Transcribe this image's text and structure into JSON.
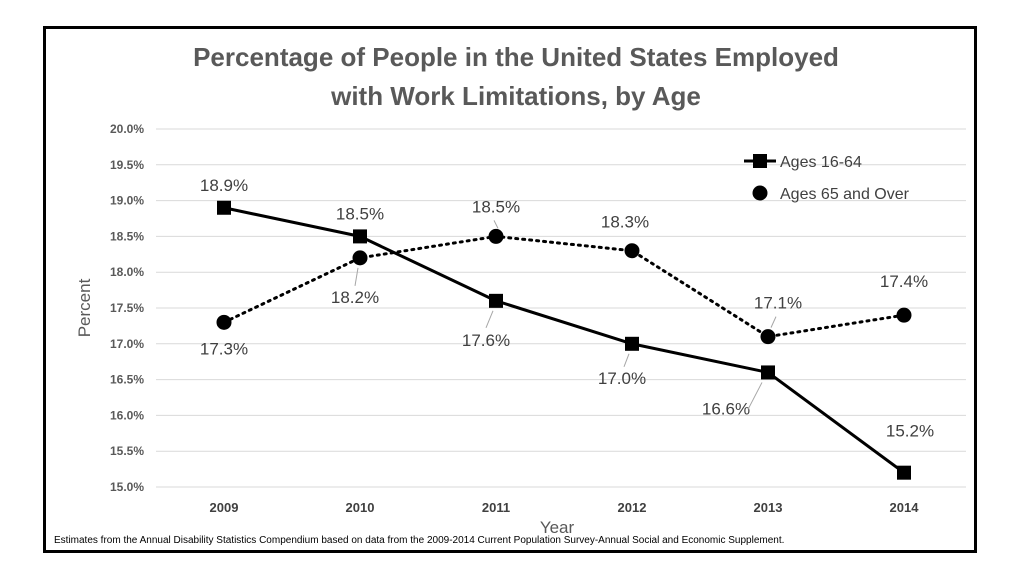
{
  "chart_data": {
    "type": "line",
    "title": [
      "Percentage of People in the United States Employed",
      "with Work Limitations, by Age"
    ],
    "xlabel": "Year",
    "ylabel": "Percent",
    "categories": [
      "2009",
      "2010",
      "2011",
      "2012",
      "2013",
      "2014"
    ],
    "ylim": [
      15.0,
      20.0
    ],
    "yticks": [
      15.0,
      15.5,
      16.0,
      16.5,
      17.0,
      17.5,
      18.0,
      18.5,
      19.0,
      19.5,
      20.0
    ],
    "ytick_labels": [
      "15.0%",
      "15.5%",
      "16.0%",
      "16.5%",
      "17.0%",
      "17.5%",
      "18.0%",
      "18.5%",
      "19.0%",
      "19.5%",
      "20.0%"
    ],
    "grid": true,
    "legend_position": "top-right",
    "series": [
      {
        "name": "Ages 16-64",
        "values": [
          18.9,
          18.5,
          17.6,
          17.0,
          16.6,
          15.2
        ],
        "labels": [
          "18.9%",
          "18.5%",
          "17.6%",
          "17.0%",
          "16.6%",
          "15.2%"
        ],
        "line_style": "solid",
        "marker": "square",
        "color": "#000000"
      },
      {
        "name": "Ages 65 and Over",
        "values": [
          17.3,
          18.2,
          18.5,
          18.3,
          17.1,
          17.4
        ],
        "labels": [
          "17.3%",
          "18.2%",
          "18.5%",
          "18.3%",
          "17.1%",
          "17.4%"
        ],
        "line_style": "dotted",
        "marker": "circle",
        "color": "#000000"
      }
    ],
    "footnote": "Estimates from the Annual Disability Statistics Compendium based on data from the 2009-2014 Current Population Survey-Annual Social and Economic Supplement.",
    "colors": {
      "gridline": "#d9d9d9",
      "title": "#595959",
      "frame": "#000000"
    }
  }
}
